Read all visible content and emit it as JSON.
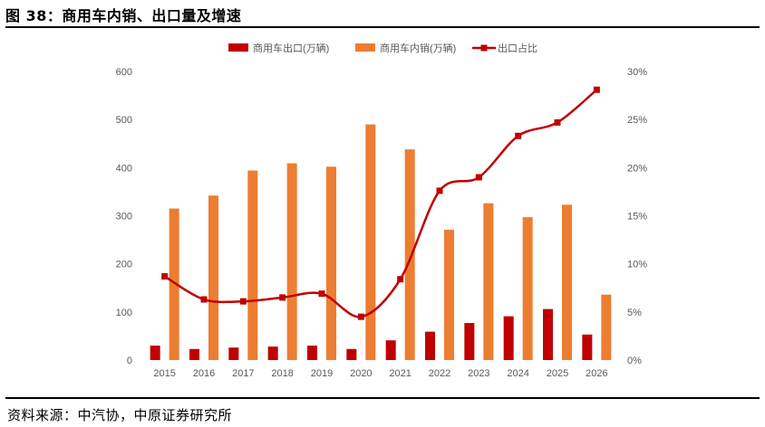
{
  "figure": {
    "title": "图 38：商用车内销、出口量及增速",
    "source": "资料来源：中汽协，中原证券研究所"
  },
  "colors": {
    "export_bar": "#c00000",
    "domestic_bar": "#ed7d31",
    "ratio_line": "#c00000",
    "axis_text": "#595959",
    "rules": "#000000"
  },
  "chart_data": {
    "type": "bar",
    "categories": [
      "2015",
      "2016",
      "2017",
      "2018",
      "2019",
      "2020",
      "2021",
      "2022",
      "2023",
      "2024",
      "2025",
      "2026"
    ],
    "series": [
      {
        "name": "商用车出口(万辆)",
        "type": "bar",
        "axis": "left",
        "values": [
          30,
          23,
          26,
          28,
          30,
          23,
          41,
          59,
          77,
          91,
          106,
          53
        ]
      },
      {
        "name": "商用车内销(万辆)",
        "type": "bar",
        "axis": "left",
        "values": [
          315,
          342,
          394,
          409,
          402,
          490,
          438,
          271,
          326,
          297,
          323,
          136
        ]
      },
      {
        "name": "出口占比",
        "type": "line",
        "axis": "right",
        "values": [
          8.7,
          6.3,
          6.1,
          6.5,
          6.9,
          4.5,
          8.4,
          17.6,
          19.0,
          23.3,
          24.7,
          28.1
        ]
      }
    ],
    "y_left": {
      "min": 0,
      "max": 600,
      "ticks": [
        "0",
        "100",
        "200",
        "300",
        "400",
        "500",
        "600"
      ]
    },
    "y_right": {
      "min": 0,
      "max": 30,
      "ticks": [
        "0%",
        "5%",
        "10%",
        "15%",
        "20%",
        "25%",
        "30%"
      ]
    },
    "legend_position": "top",
    "grid": false
  }
}
